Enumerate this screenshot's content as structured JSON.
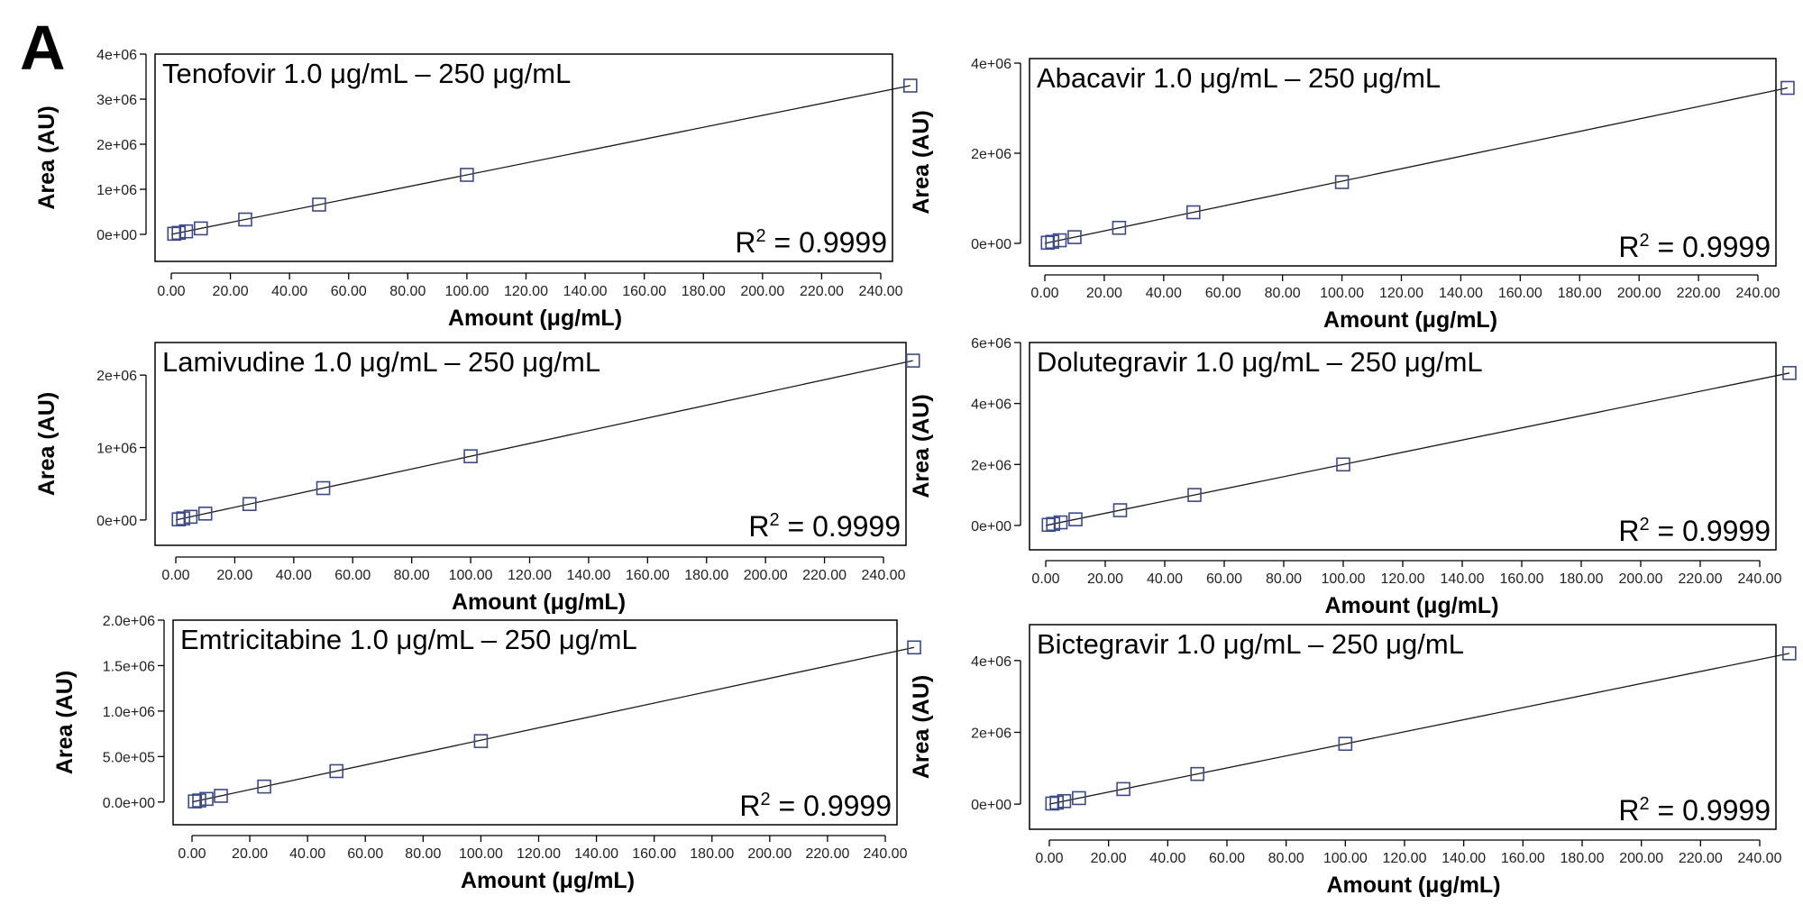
{
  "panel_label": "A",
  "chart_data": [
    {
      "type": "scatter",
      "title": "Tenofovir 1.0 μg/mL – 250 μg/mL",
      "xlabel": "Amount (μg/mL)",
      "ylabel": "Area (AU)",
      "annotation": {
        "prefix": "R",
        "sup": "2",
        "suffix": " = 0.9999"
      },
      "xlim": [
        -5,
        255
      ],
      "ylim": [
        -600000,
        4000000
      ],
      "xticks": [
        "0.00",
        "20.00",
        "40.00",
        "60.00",
        "80.00",
        "100.00",
        "120.00",
        "140.00",
        "160.00",
        "180.00",
        "200.00",
        "220.00",
        "240.00"
      ],
      "yticks": [
        {
          "value": 0,
          "label": "0e+00"
        },
        {
          "value": 1000000,
          "label": "1e+06"
        },
        {
          "value": 2000000,
          "label": "2e+06"
        },
        {
          "value": 3000000,
          "label": "3e+06"
        },
        {
          "value": 4000000,
          "label": "4e+06"
        }
      ],
      "series": [
        {
          "x": [
            1,
            2.5,
            5,
            10,
            25,
            50,
            100,
            250
          ],
          "y": [
            13000,
            33000,
            66000,
            132000,
            330000,
            660000,
            1320000,
            3300000
          ]
        }
      ],
      "fit_line": {
        "slope": 13200,
        "intercept": 0
      }
    },
    {
      "type": "scatter",
      "title": "Abacavir 1.0 μg/mL – 250 μg/mL",
      "xlabel": "Amount (μg/mL)",
      "ylabel": "Area (AU)",
      "annotation": {
        "prefix": "R",
        "sup": "2",
        "suffix": " = 0.9999"
      },
      "xlim": [
        -5,
        255
      ],
      "ylim": [
        -500000,
        4100000
      ],
      "xticks": [
        "0.00",
        "20.00",
        "40.00",
        "60.00",
        "80.00",
        "100.00",
        "120.00",
        "140.00",
        "160.00",
        "180.00",
        "200.00",
        "220.00",
        "240.00"
      ],
      "yticks": [
        {
          "value": 0,
          "label": "0e+00"
        },
        {
          "value": 2000000,
          "label": "2e+06"
        },
        {
          "value": 4000000,
          "label": "4e+06"
        }
      ],
      "series": [
        {
          "x": [
            1,
            2.5,
            5,
            10,
            25,
            50,
            100,
            250
          ],
          "y": [
            13800,
            34500,
            69000,
            138000,
            345000,
            690000,
            1360000,
            3450000
          ]
        }
      ],
      "fit_line": {
        "slope": 13800,
        "intercept": 0
      }
    },
    {
      "type": "scatter",
      "title": "Lamivudine 1.0 μg/mL – 250 μg/mL",
      "xlabel": "Amount (μg/mL)",
      "ylabel": "Area (AU)",
      "annotation": {
        "prefix": "R",
        "sup": "2",
        "suffix": " = 0.9999"
      },
      "xlim": [
        -5,
        255
      ],
      "ylim": [
        -350000,
        2450000
      ],
      "xticks": [
        "0.00",
        "20.00",
        "40.00",
        "60.00",
        "80.00",
        "100.00",
        "120.00",
        "140.00",
        "160.00",
        "180.00",
        "200.00",
        "220.00",
        "240.00"
      ],
      "yticks": [
        {
          "value": 0,
          "label": "0e+00"
        },
        {
          "value": 1000000,
          "label": "1e+06"
        },
        {
          "value": 2000000,
          "label": "2e+06"
        }
      ],
      "series": [
        {
          "x": [
            1,
            2.5,
            5,
            10,
            25,
            50,
            100,
            250
          ],
          "y": [
            8800,
            22000,
            44000,
            88000,
            220000,
            440000,
            880000,
            2200000
          ]
        }
      ],
      "fit_line": {
        "slope": 8800,
        "intercept": 0
      }
    },
    {
      "type": "scatter",
      "title": "Dolutegravir 1.0 μg/mL – 250 μg/mL",
      "xlabel": "Amount (μg/mL)",
      "ylabel": "Area (AU)",
      "annotation": {
        "prefix": "R",
        "sup": "2",
        "suffix": " = 0.9999"
      },
      "xlim": [
        -5,
        255
      ],
      "ylim": [
        -800000,
        6000000
      ],
      "xticks": [
        "0.00",
        "20.00",
        "40.00",
        "60.00",
        "80.00",
        "100.00",
        "120.00",
        "140.00",
        "160.00",
        "180.00",
        "200.00",
        "220.00",
        "240.00"
      ],
      "yticks": [
        {
          "value": 0,
          "label": "0e+00"
        },
        {
          "value": 2000000,
          "label": "2e+06"
        },
        {
          "value": 4000000,
          "label": "4e+06"
        },
        {
          "value": 6000000,
          "label": "6e+06"
        }
      ],
      "series": [
        {
          "x": [
            1,
            2.5,
            5,
            10,
            25,
            50,
            100,
            250
          ],
          "y": [
            20000,
            50000,
            100000,
            200000,
            500000,
            1000000,
            2000000,
            5000000
          ]
        }
      ],
      "fit_line": {
        "slope": 20000,
        "intercept": 0
      }
    },
    {
      "type": "scatter",
      "title": "Emtricitabine 1.0 μg/mL – 250 μg/mL",
      "xlabel": "Amount (μg/mL)",
      "ylabel": "Area (AU)",
      "annotation": {
        "prefix": "R",
        "sup": "2",
        "suffix": " = 0.9999"
      },
      "xlim": [
        -5,
        255
      ],
      "ylim": [
        -250000,
        2000000
      ],
      "xticks": [
        "0.00",
        "20.00",
        "40.00",
        "60.00",
        "80.00",
        "100.00",
        "120.00",
        "140.00",
        "160.00",
        "180.00",
        "200.00",
        "220.00",
        "240.00"
      ],
      "yticks": [
        {
          "value": 0,
          "label": "0.0e+00"
        },
        {
          "value": 500000,
          "label": "5.0e+05"
        },
        {
          "value": 1000000,
          "label": "1.0e+06"
        },
        {
          "value": 1500000,
          "label": "1.5e+06"
        },
        {
          "value": 2000000,
          "label": "2.0e+06"
        }
      ],
      "series": [
        {
          "x": [
            1,
            2.5,
            5,
            10,
            25,
            50,
            100,
            250
          ],
          "y": [
            6800,
            17000,
            34000,
            68000,
            170000,
            340000,
            670000,
            1700000
          ]
        }
      ],
      "fit_line": {
        "slope": 6800,
        "intercept": 0
      }
    },
    {
      "type": "scatter",
      "title": "Bictegravir 1.0 μg/mL – 250 μg/mL",
      "xlabel": "Amount (μg/mL)",
      "ylabel": "Area (AU)",
      "annotation": {
        "prefix": "R",
        "sup": "2",
        "suffix": " = 0.9999"
      },
      "xlim": [
        -5,
        255
      ],
      "ylim": [
        -700000,
        5000000
      ],
      "xticks": [
        "0.00",
        "20.00",
        "40.00",
        "60.00",
        "80.00",
        "100.00",
        "120.00",
        "140.00",
        "160.00",
        "180.00",
        "200.00",
        "220.00",
        "240.00"
      ],
      "yticks": [
        {
          "value": 0,
          "label": "0e+00"
        },
        {
          "value": 2000000,
          "label": "2e+06"
        },
        {
          "value": 4000000,
          "label": "4e+06"
        }
      ],
      "series": [
        {
          "x": [
            1,
            2.5,
            5,
            10,
            25,
            50,
            100,
            250
          ],
          "y": [
            16800,
            42000,
            84000,
            168000,
            420000,
            840000,
            1680000,
            4200000
          ]
        }
      ],
      "fit_line": {
        "slope": 16800,
        "intercept": 0
      }
    }
  ]
}
